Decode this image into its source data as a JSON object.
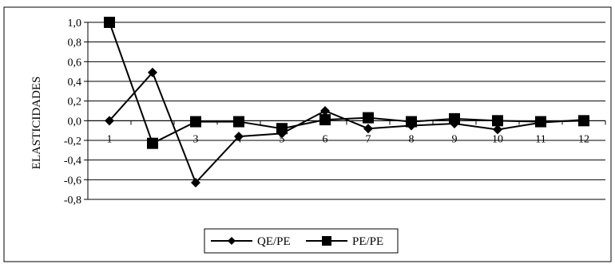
{
  "chart_data": {
    "type": "line",
    "ylabel": "ELASTICIDADES",
    "xlabel": "",
    "categories": [
      "1",
      "2",
      "3",
      "4",
      "5",
      "6",
      "7",
      "8",
      "9",
      "10",
      "11",
      "12"
    ],
    "x_tick_labels": [
      "1",
      "",
      "3",
      "4",
      "5",
      "6",
      "7",
      "8",
      "9",
      "10",
      "11",
      "12"
    ],
    "ylim": [
      -0.8,
      1.0
    ],
    "y_ticks": [
      1.0,
      0.8,
      0.6,
      0.4,
      0.2,
      0.0,
      -0.2,
      -0.4,
      -0.6,
      -0.8
    ],
    "y_tick_labels": [
      "1,0",
      "0,8",
      "0,6",
      "0,4",
      "0,2",
      "0,0",
      "-0,2",
      "-0,4",
      "-0,6",
      "-0,8"
    ],
    "grid": true,
    "legend_position": "bottom",
    "series": [
      {
        "name": "QE/PE",
        "marker": "diamond",
        "color": "#000000",
        "values": [
          0.0,
          0.49,
          -0.63,
          -0.16,
          -0.13,
          0.1,
          -0.08,
          -0.05,
          -0.03,
          -0.09,
          -0.02,
          0.01
        ]
      },
      {
        "name": "PE/PE",
        "marker": "square",
        "color": "#000000",
        "values": [
          1.0,
          -0.23,
          -0.01,
          -0.01,
          -0.08,
          0.01,
          0.03,
          -0.01,
          0.02,
          0.0,
          -0.01,
          0.0
        ]
      }
    ]
  }
}
